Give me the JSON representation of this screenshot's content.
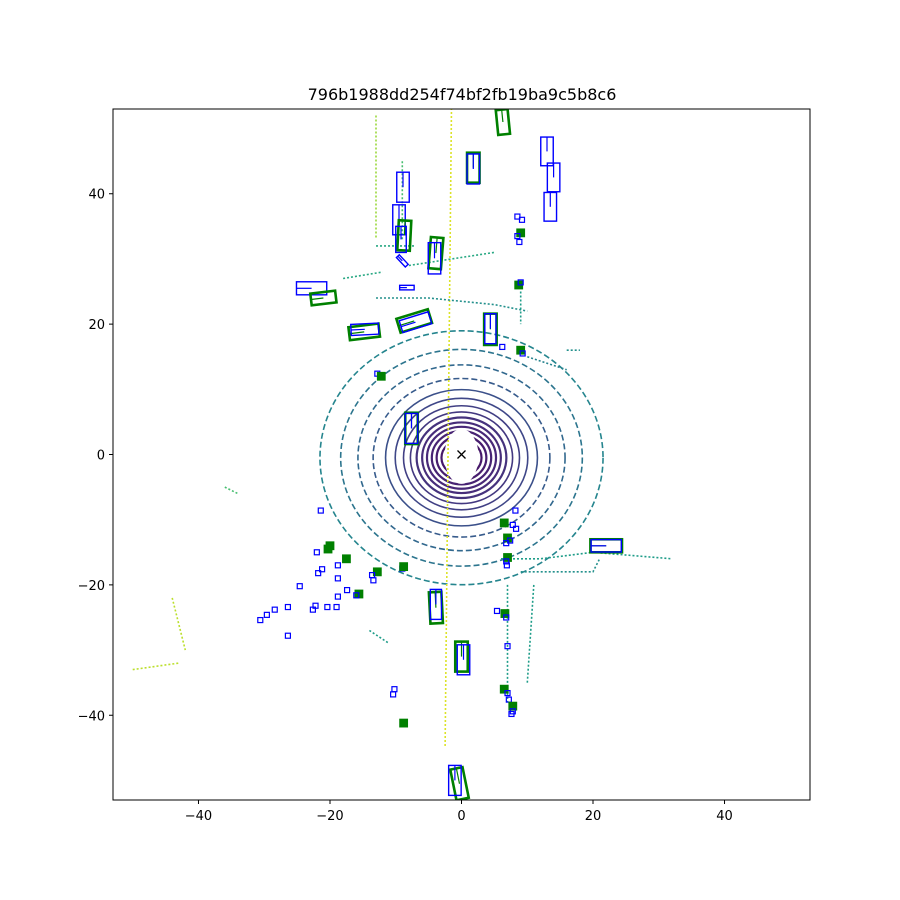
{
  "chart_data": {
    "type": "scatter",
    "title": "796b1988dd254f74bf2fb19ba9c5b8c6",
    "xlabel": "",
    "ylabel": "",
    "xlim": [
      -53,
      53
    ],
    "ylim": [
      -53,
      53
    ],
    "grid": false,
    "xticks": [
      -40,
      -20,
      0,
      20,
      40
    ],
    "yticks": [
      -40,
      -20,
      0,
      20,
      40
    ],
    "xtick_labels": [
      "−40",
      "−20",
      "0",
      "20",
      "40"
    ],
    "ytick_labels": [
      "−40",
      "−20",
      "0",
      "20",
      "40"
    ],
    "ego_marker": {
      "x": 0,
      "y": 0,
      "symbol": "x"
    },
    "colors": {
      "gt_box": "#008000",
      "pred_box": "#0000ff",
      "points_colormap": "viridis"
    },
    "point_rings": [
      1.5,
      2.2,
      2.9,
      3.6,
      4.3,
      5.0,
      5.7,
      6.5,
      7.4,
      8.4,
      9.6,
      11.0,
      12.8,
      15.0,
      17.5,
      20.5
    ],
    "point_segments": [
      {
        "points": [
          [
            -1.5,
            55
          ],
          [
            -2.5,
            -45
          ]
        ],
        "level": 0.95
      },
      {
        "points": [
          [
            -13,
            32
          ],
          [
            -7,
            32
          ]
        ],
        "level": 0.6
      },
      {
        "points": [
          [
            -18,
            27
          ],
          [
            -12,
            28
          ]
        ],
        "level": 0.6
      },
      {
        "points": [
          [
            -13,
            24
          ],
          [
            -5,
            24
          ],
          [
            5,
            23
          ],
          [
            10,
            22
          ]
        ],
        "level": 0.5
      },
      {
        "points": [
          [
            -8,
            29
          ],
          [
            5,
            31
          ]
        ],
        "level": 0.6
      },
      {
        "points": [
          [
            6,
            -16
          ],
          [
            12,
            -16
          ],
          [
            20,
            -15
          ],
          [
            32,
            -16
          ]
        ],
        "level": 0.55
      },
      {
        "points": [
          [
            9,
            -18
          ],
          [
            20,
            -18
          ],
          [
            21,
            -16
          ]
        ],
        "level": 0.5
      },
      {
        "points": [
          [
            -44,
            -22
          ],
          [
            -42,
            -30
          ]
        ],
        "level": 0.9
      },
      {
        "points": [
          [
            -50,
            -33
          ],
          [
            -43,
            -32
          ]
        ],
        "level": 0.9
      },
      {
        "points": [
          [
            -36,
            -5
          ],
          [
            -34,
            -6
          ]
        ],
        "level": 0.7
      },
      {
        "points": [
          [
            -14,
            -27
          ],
          [
            -11,
            -29
          ]
        ],
        "level": 0.55
      },
      {
        "points": [
          [
            7,
            -20
          ],
          [
            7,
            -38
          ]
        ],
        "level": 0.55
      },
      {
        "points": [
          [
            11,
            -20
          ],
          [
            10,
            -35
          ]
        ],
        "level": 0.55
      },
      {
        "points": [
          [
            -9,
            45
          ],
          [
            -9,
            33
          ]
        ],
        "level": 0.7
      },
      {
        "points": [
          [
            -13,
            52
          ],
          [
            -13,
            33
          ]
        ],
        "level": 0.85
      },
      {
        "points": [
          [
            9,
            25
          ],
          [
            9,
            20
          ]
        ],
        "level": 0.55
      },
      {
        "points": [
          [
            10,
            15
          ],
          [
            16,
            13
          ]
        ],
        "level": 0.45
      },
      {
        "points": [
          [
            16,
            16
          ],
          [
            18,
            16
          ]
        ],
        "level": 0.5
      }
    ],
    "boxes": [
      {
        "kind": "gt",
        "cx": 6.3,
        "cy": 51,
        "w": 1.8,
        "l": 3.8,
        "yaw": 0.1
      },
      {
        "kind": "gt",
        "cx": 1.8,
        "cy": 44,
        "w": 1.9,
        "l": 4.6,
        "yaw": 0
      },
      {
        "kind": "pred",
        "cx": 1.8,
        "cy": 43.8,
        "w": 1.9,
        "l": 4.6,
        "yaw": 0
      },
      {
        "kind": "pred",
        "cx": 13.0,
        "cy": 46.5,
        "w": 1.9,
        "l": 4.4,
        "yaw": 0
      },
      {
        "kind": "pred",
        "cx": 14.0,
        "cy": 42.5,
        "w": 1.9,
        "l": 4.4,
        "yaw": 0
      },
      {
        "kind": "pred",
        "cx": 13.5,
        "cy": 38.0,
        "w": 1.9,
        "l": 4.4,
        "yaw": 0
      },
      {
        "kind": "pred",
        "cx": -8.9,
        "cy": 41.0,
        "w": 1.9,
        "l": 4.6,
        "yaw": 0
      },
      {
        "kind": "pred",
        "cx": -9.5,
        "cy": 36.0,
        "w": 1.9,
        "l": 4.6,
        "yaw": 0
      },
      {
        "kind": "gt",
        "cx": -8.7,
        "cy": 33.6,
        "w": 1.9,
        "l": 4.6,
        "yaw": -0.05
      },
      {
        "kind": "pred",
        "cx": -9.2,
        "cy": 33.0,
        "w": 1.6,
        "l": 4.0,
        "yaw": 0
      },
      {
        "kind": "pred",
        "cx": -9.0,
        "cy": 29.7,
        "w": 0.6,
        "l": 2.0,
        "yaw": 0.75
      },
      {
        "kind": "gt",
        "cx": -3.9,
        "cy": 30.9,
        "w": 1.9,
        "l": 4.8,
        "yaw": -0.08
      },
      {
        "kind": "pred",
        "cx": -4.1,
        "cy": 30.1,
        "w": 1.9,
        "l": 4.8,
        "yaw": 0
      },
      {
        "kind": "pred",
        "cx": -8.3,
        "cy": 25.6,
        "w": 2.2,
        "l": 0.7,
        "yaw": 0
      },
      {
        "kind": "pred",
        "cx": -22.8,
        "cy": 25.5,
        "w": 4.6,
        "l": 2.0,
        "yaw": 0
      },
      {
        "kind": "gt",
        "cx": -21.0,
        "cy": 24.0,
        "w": 3.8,
        "l": 1.8,
        "yaw": 0.12
      },
      {
        "kind": "gt",
        "cx": -14.8,
        "cy": 18.8,
        "w": 4.6,
        "l": 2.0,
        "yaw": 0.12
      },
      {
        "kind": "pred",
        "cx": -14.7,
        "cy": 19.2,
        "w": 4.2,
        "l": 1.7,
        "yaw": 0.05
      },
      {
        "kind": "gt",
        "cx": -7.2,
        "cy": 20.5,
        "w": 5.0,
        "l": 2.2,
        "yaw": 0.3
      },
      {
        "kind": "pred",
        "cx": -7.0,
        "cy": 20.3,
        "w": 4.6,
        "l": 1.9,
        "yaw": 0.3
      },
      {
        "kind": "gt",
        "cx": 4.4,
        "cy": 19.2,
        "w": 1.9,
        "l": 4.8,
        "yaw": 0
      },
      {
        "kind": "pred",
        "cx": 4.4,
        "cy": 19.3,
        "w": 1.7,
        "l": 4.6,
        "yaw": 0
      },
      {
        "kind": "gt",
        "cx": -7.6,
        "cy": 4.0,
        "w": 1.9,
        "l": 4.8,
        "yaw": 0
      },
      {
        "kind": "pred",
        "cx": -7.6,
        "cy": 4.0,
        "w": 1.9,
        "l": 4.6,
        "yaw": 0
      },
      {
        "kind": "gt",
        "cx": 22.0,
        "cy": -14.0,
        "w": 4.8,
        "l": 2.0,
        "yaw": 0
      },
      {
        "kind": "pred",
        "cx": 22.0,
        "cy": -14.0,
        "w": 4.6,
        "l": 1.9,
        "yaw": 0
      },
      {
        "kind": "gt",
        "cx": -3.9,
        "cy": -23.5,
        "w": 1.9,
        "l": 4.8,
        "yaw": 0.05
      },
      {
        "kind": "pred",
        "cx": -3.9,
        "cy": -23.0,
        "w": 1.7,
        "l": 4.6,
        "yaw": 0
      },
      {
        "kind": "gt",
        "cx": 0.0,
        "cy": -31.0,
        "w": 1.9,
        "l": 4.6,
        "yaw": 0
      },
      {
        "kind": "pred",
        "cx": 0.3,
        "cy": -31.5,
        "w": 1.9,
        "l": 4.6,
        "yaw": 0
      },
      {
        "kind": "gt",
        "cx": -0.3,
        "cy": -50.5,
        "w": 1.9,
        "l": 4.8,
        "yaw": 0.2
      },
      {
        "kind": "pred",
        "cx": -1.0,
        "cy": -50.0,
        "w": 1.9,
        "l": 4.6,
        "yaw": 0
      }
    ],
    "small_boxes": [
      {
        "kind": "pred",
        "x": 8.5,
        "y": 36.5
      },
      {
        "kind": "pred",
        "x": 9.2,
        "y": 36.0
      },
      {
        "kind": "gt",
        "x": 9.0,
        "y": 34.0
      },
      {
        "kind": "pred",
        "x": 8.5,
        "y": 33.5
      },
      {
        "kind": "pred",
        "x": 8.8,
        "y": 32.6
      },
      {
        "kind": "gt",
        "x": 8.7,
        "y": 26.0
      },
      {
        "kind": "pred",
        "x": 9.0,
        "y": 26.4
      },
      {
        "kind": "pred",
        "x": 6.2,
        "y": 16.5
      },
      {
        "kind": "gt",
        "x": 9.0,
        "y": 16.0
      },
      {
        "kind": "pred",
        "x": 9.3,
        "y": 15.5
      },
      {
        "kind": "pred",
        "x": -12.8,
        "y": 12.4
      },
      {
        "kind": "gt",
        "x": -12.2,
        "y": 12.0
      },
      {
        "kind": "pred",
        "x": -21.4,
        "y": -8.6
      },
      {
        "kind": "pred",
        "x": 8.2,
        "y": -8.6
      },
      {
        "kind": "gt",
        "x": 6.5,
        "y": -10.5
      },
      {
        "kind": "pred",
        "x": 7.8,
        "y": -10.8
      },
      {
        "kind": "pred",
        "x": 8.3,
        "y": -11.4
      },
      {
        "kind": "gt",
        "x": 7.0,
        "y": -12.8
      },
      {
        "kind": "pred",
        "x": 7.4,
        "y": -13.2
      },
      {
        "kind": "pred",
        "x": 6.8,
        "y": -13.6
      },
      {
        "kind": "gt",
        "x": 7.0,
        "y": -15.8
      },
      {
        "kind": "pred",
        "x": 6.8,
        "y": -16.4
      },
      {
        "kind": "pred",
        "x": 6.9,
        "y": -17.0
      },
      {
        "kind": "gt",
        "x": -20.0,
        "y": -14.0
      },
      {
        "kind": "gt",
        "x": -20.3,
        "y": -14.5
      },
      {
        "kind": "pred",
        "x": -22.0,
        "y": -15.0
      },
      {
        "kind": "gt",
        "x": -17.5,
        "y": -16.0
      },
      {
        "kind": "pred",
        "x": -18.8,
        "y": -17.0
      },
      {
        "kind": "pred",
        "x": -21.2,
        "y": -17.6
      },
      {
        "kind": "pred",
        "x": -21.8,
        "y": -18.2
      },
      {
        "kind": "gt",
        "x": -12.8,
        "y": -18.0
      },
      {
        "kind": "pred",
        "x": -13.6,
        "y": -18.5
      },
      {
        "kind": "pred",
        "x": -13.4,
        "y": -19.3
      },
      {
        "kind": "pred",
        "x": -18.8,
        "y": -19.0
      },
      {
        "kind": "pred",
        "x": -9.0,
        "y": -17.5
      },
      {
        "kind": "gt",
        "x": -8.8,
        "y": -17.2
      },
      {
        "kind": "pred",
        "x": -24.6,
        "y": -20.2
      },
      {
        "kind": "pred",
        "x": -17.4,
        "y": -20.8
      },
      {
        "kind": "pred",
        "x": -18.8,
        "y": -21.8
      },
      {
        "kind": "gt",
        "x": -15.6,
        "y": -21.4
      },
      {
        "kind": "pred",
        "x": -16.0,
        "y": -21.6
      },
      {
        "kind": "pred",
        "x": -22.2,
        "y": -23.2
      },
      {
        "kind": "pred",
        "x": -22.6,
        "y": -23.8
      },
      {
        "kind": "pred",
        "x": -20.4,
        "y": -23.4
      },
      {
        "kind": "pred",
        "x": -19.0,
        "y": -23.4
      },
      {
        "kind": "pred",
        "x": -28.4,
        "y": -23.8
      },
      {
        "kind": "pred",
        "x": -26.4,
        "y": -23.4
      },
      {
        "kind": "pred",
        "x": -29.6,
        "y": -24.6
      },
      {
        "kind": "pred",
        "x": -30.6,
        "y": -25.4
      },
      {
        "kind": "pred",
        "x": -26.4,
        "y": -27.8
      },
      {
        "kind": "pred",
        "x": 5.4,
        "y": -24.0
      },
      {
        "kind": "gt",
        "x": 6.6,
        "y": -24.4
      },
      {
        "kind": "pred",
        "x": 6.8,
        "y": -25.0
      },
      {
        "kind": "pred",
        "x": 7.0,
        "y": -29.4
      },
      {
        "kind": "pred",
        "x": -10.2,
        "y": -36.0
      },
      {
        "kind": "pred",
        "x": -10.4,
        "y": -36.8
      },
      {
        "kind": "gt",
        "x": 6.5,
        "y": -36.0
      },
      {
        "kind": "pred",
        "x": 7.0,
        "y": -36.6
      },
      {
        "kind": "pred",
        "x": 7.2,
        "y": -37.6
      },
      {
        "kind": "gt",
        "x": 7.8,
        "y": -38.6
      },
      {
        "kind": "pred",
        "x": 7.8,
        "y": -39.4
      },
      {
        "kind": "pred",
        "x": 7.6,
        "y": -39.8
      },
      {
        "kind": "gt",
        "x": -8.8,
        "y": -41.2
      }
    ]
  }
}
